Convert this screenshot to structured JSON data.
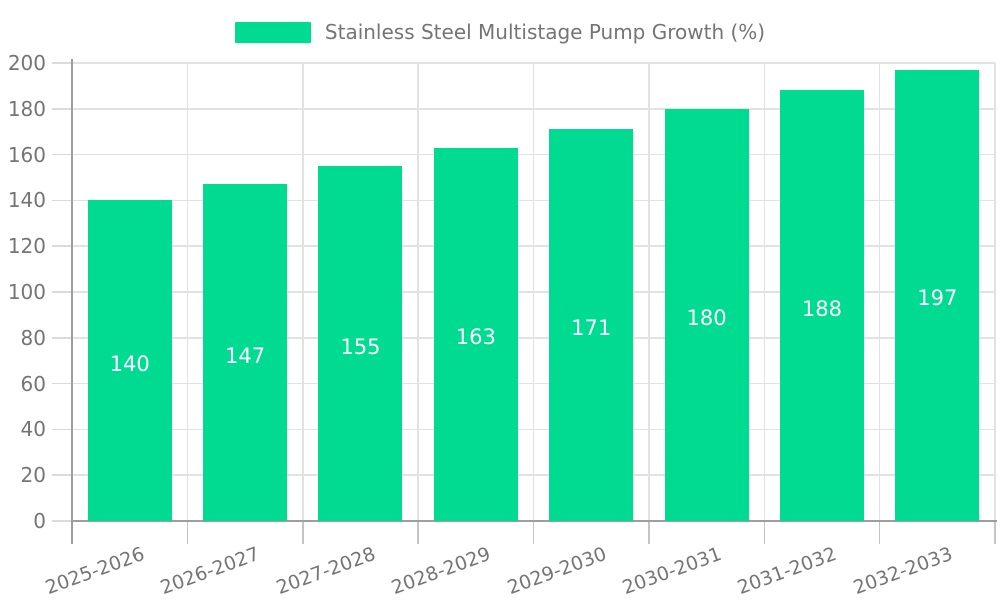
{
  "chart_data": {
    "type": "bar",
    "title": "Stainless Steel Multistage Pump Growth (%)",
    "legend_label": "Stainless Steel Multistage Pump Growth (%)",
    "categories": [
      "2025-2026",
      "2026-2027",
      "2027-2028",
      "2028-2029",
      "2029-2030",
      "2030-2031",
      "2031-2032",
      "2032-2033"
    ],
    "values": [
      140,
      147,
      155,
      163,
      171,
      180,
      188,
      197
    ],
    "xlabel": "",
    "ylabel": "",
    "ylim": [
      0,
      200
    ],
    "ytick_step": 20,
    "yticks": [
      0,
      20,
      40,
      60,
      80,
      100,
      120,
      140,
      160,
      180,
      200
    ],
    "grid": true,
    "legend_position": "top-center",
    "x_label_rotation_deg": -20,
    "bar_color": "#00DB92",
    "value_label_color": "#FFFFFF",
    "grid_color": "#E2E2E2",
    "tick_color": "#DBDBDB",
    "axis_color": "#9E9E9E",
    "text_color": "#757575",
    "background_color": "#FFFFFF"
  }
}
